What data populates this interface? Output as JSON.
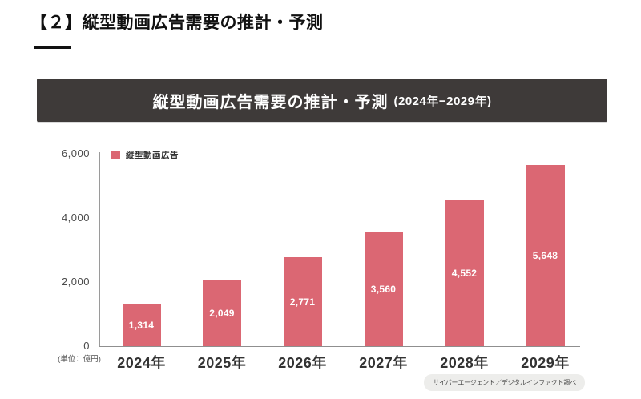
{
  "page": {
    "title": "【２】縦型動画広告需要の推計・予測"
  },
  "banner": {
    "title": "縦型動画広告需要の推計・予測",
    "subtitle": "(2024年−2029年)"
  },
  "legend": {
    "label": "縦型動画広告"
  },
  "axis": {
    "unit_label": "(単位：億円)"
  },
  "footer": {
    "source": "サイバーエージェント／デジタルインファクト調べ"
  },
  "colors": {
    "bar": "#DB6773",
    "banner_bg": "#3E3A39",
    "pill_bg": "#EDEDEB"
  },
  "chart_data": {
    "type": "bar",
    "title": "縦型動画広告需要の推計・予測 (2024年−2029年)",
    "series_name": "縦型動画広告",
    "unit": "億円",
    "categories": [
      "2024年",
      "2025年",
      "2026年",
      "2027年",
      "2028年",
      "2029年"
    ],
    "values": [
      1314,
      2049,
      2771,
      3560,
      4552,
      5648
    ],
    "value_labels": [
      "1,314",
      "2,049",
      "2,771",
      "3,560",
      "4,552",
      "5,648"
    ],
    "ylim": [
      0,
      6000
    ],
    "yticks": [
      0,
      2000,
      4000,
      6000
    ],
    "ytick_labels": [
      "0",
      "2,000",
      "4,000",
      "6,000"
    ],
    "grid": false,
    "legend_position": "top-left"
  }
}
